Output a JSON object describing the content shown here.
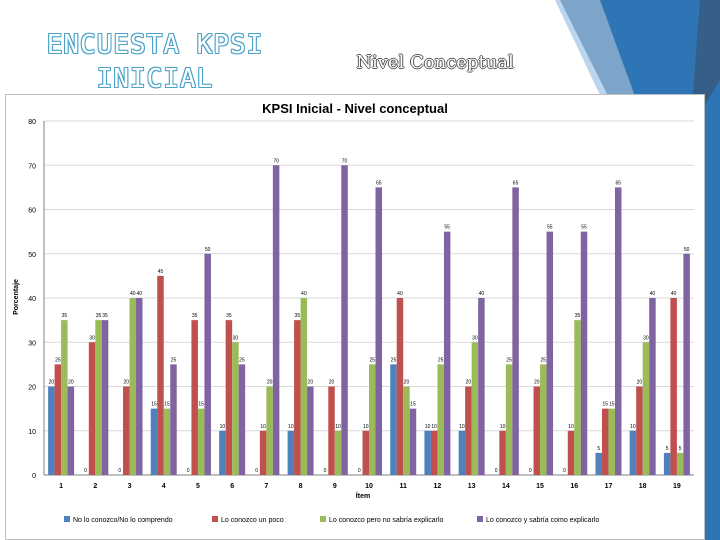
{
  "slide": {
    "title_line1": "ENCUESTA KPSI",
    "title_line2": "INICIAL",
    "subtitle": "Nivel Conceptual"
  },
  "colors": {
    "series": [
      "#4f81bd",
      "#c0504d",
      "#9bbb59",
      "#8064a2"
    ],
    "deco_blue": "#2e75b6",
    "deco_dark": "#1f4e79"
  },
  "chart_data": {
    "type": "bar",
    "title": "KPSI Inicial - Nivel conceptual",
    "xlabel": "Ítem",
    "ylabel": "Porcentaje",
    "ylim": [
      0,
      80
    ],
    "yticks": [
      0,
      10,
      20,
      30,
      40,
      50,
      60,
      70,
      80
    ],
    "grid": true,
    "legend_position": "bottom",
    "categories": [
      "1",
      "2",
      "3",
      "4",
      "5",
      "6",
      "7",
      "8",
      "9",
      "10",
      "11",
      "12",
      "13",
      "14",
      "15",
      "16",
      "17",
      "18",
      "19"
    ],
    "series": [
      {
        "name": "No lo conozco/No lo comprendo",
        "values": [
          20,
          0,
          0,
          15,
          0,
          10,
          0,
          10,
          0,
          0,
          25,
          10,
          10,
          0,
          0,
          0,
          5,
          10,
          5
        ]
      },
      {
        "name": "Lo conozco un poco",
        "values": [
          25,
          30,
          20,
          45,
          35,
          35,
          10,
          35,
          20,
          10,
          40,
          10,
          20,
          10,
          20,
          10,
          15,
          20,
          40
        ]
      },
      {
        "name": "Lo conozco pero no sabría explicarlo",
        "values": [
          35,
          35,
          40,
          15,
          15,
          30,
          20,
          40,
          10,
          25,
          20,
          25,
          30,
          25,
          25,
          35,
          15,
          30,
          5
        ]
      },
      {
        "name": "Lo conozco y sabría como explicarlo",
        "values": [
          20,
          35,
          40,
          25,
          50,
          25,
          70,
          20,
          70,
          65,
          15,
          55,
          40,
          65,
          55,
          55,
          65,
          40,
          50
        ]
      }
    ]
  }
}
